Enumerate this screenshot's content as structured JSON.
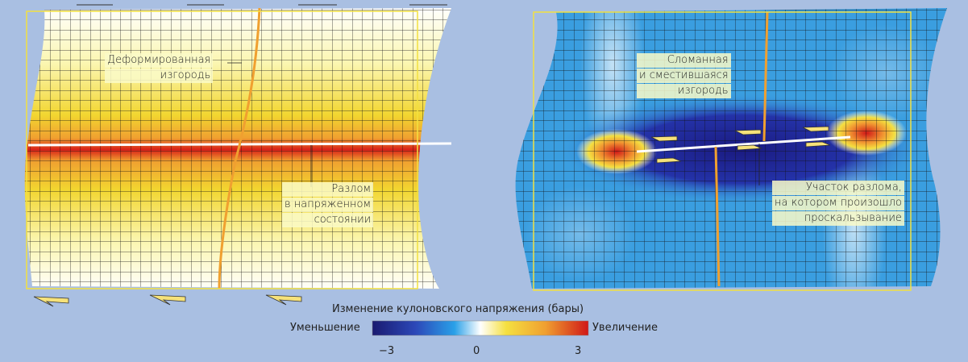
{
  "left_panel": {
    "fence_label": [
      "Деформированная",
      "изгородь"
    ],
    "fault_label": [
      "Разлом",
      "в напряженном",
      "состоянии"
    ]
  },
  "right_panel": {
    "fence_label": [
      "Сломанная",
      "и сместившаяся",
      "изгородь"
    ],
    "fault_label": [
      "Участок разлома,",
      "на котором произошло",
      "проскальзывание"
    ]
  },
  "colorbar": {
    "title": "Изменение кулоновского напряжения (бары)",
    "left_label": "Уменьшение",
    "right_label": "Увеличение",
    "ticks": [
      "−3",
      "0",
      "3"
    ]
  }
}
